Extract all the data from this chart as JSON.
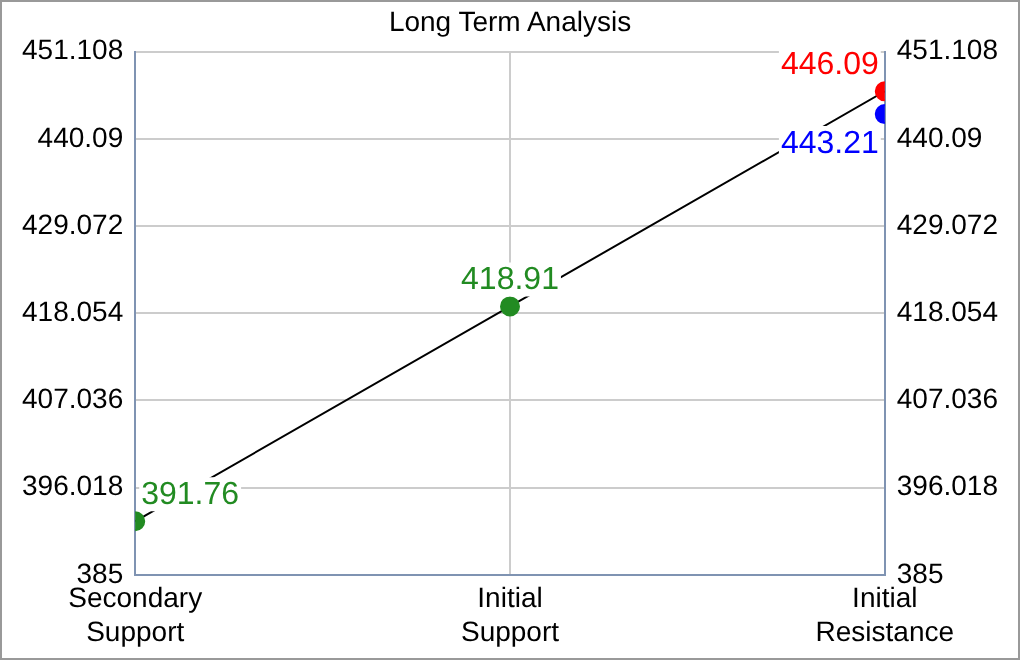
{
  "chart_data": {
    "type": "line",
    "title": "Long Term Analysis",
    "categories": [
      "Secondary Support",
      "Initial Support",
      "Initial Resistance"
    ],
    "ylim": [
      385,
      451.108
    ],
    "yticks": [
      385,
      396.018,
      407.036,
      418.054,
      429.072,
      440.09,
      451.108
    ],
    "y2lim": [
      385,
      451.108
    ],
    "y2ticks": [
      385,
      396.018,
      407.036,
      418.054,
      429.072,
      440.09,
      451.108
    ],
    "grid": true,
    "series": [
      {
        "color": "#000000",
        "marker": "none",
        "values": [
          391.76,
          418.91,
          446.09
        ]
      },
      {
        "type": "scatter",
        "marker": "circle",
        "colors": [
          "#228b22",
          "#228b22",
          "#0000ff",
          "#ff0000"
        ],
        "x": [
          "Secondary Support",
          "Initial Support",
          "Initial Resistance",
          "Initial Resistance"
        ],
        "values": [
          391.76,
          418.91,
          443.21,
          446.09
        ],
        "value_labels": [
          "391.76",
          "418.91",
          "443.21",
          "446.09"
        ]
      }
    ]
  }
}
